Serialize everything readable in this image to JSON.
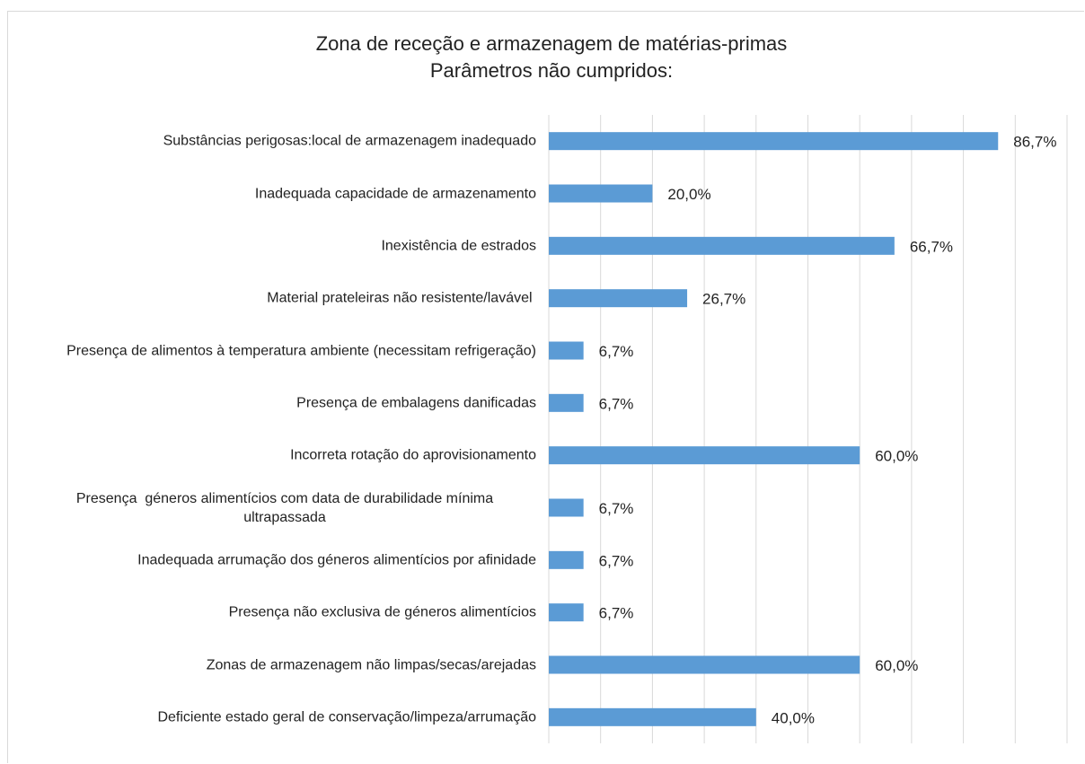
{
  "chart_data": {
    "type": "barh",
    "title": "Zona de receção e armazenagem de matérias-primas",
    "subtitle": "Parâmetros não cumpridos:",
    "categories": [
      "Substâncias perigosas:local de armazenagem inadequado",
      "Inadequada capacidade de armazenamento",
      "Inexistência de estrados",
      "Material prateleiras não resistente/lavável ",
      "Presença de alimentos à temperatura ambiente (necessitam refrigeração)",
      "Presença de embalagens danificadas",
      "Incorreta rotação do aprovisionamento",
      "Presença  géneros alimentícios com data de durabilidade mínima ultrapassada",
      "Inadequada arrumação dos géneros alimentícios por afinidade",
      "Presença não exclusiva de géneros alimentícios",
      "Zonas de armazenagem não limpas/secas/arejadas",
      "Deficiente estado geral de conservação/limpeza/arrumação"
    ],
    "values": [
      86.7,
      20.0,
      66.7,
      26.7,
      6.7,
      6.7,
      60.0,
      6.7,
      6.7,
      6.7,
      60.0,
      40.0
    ],
    "value_labels": [
      "86,7%",
      "20,0%",
      "66,7%",
      "26,7%",
      "6,7%",
      "6,7%",
      "60,0%",
      "6,7%",
      "6,7%",
      "6,7%",
      "60,0%",
      "40,0%"
    ],
    "color": "#5b9bd5",
    "xlim": [
      0,
      100
    ],
    "xticks": [
      0,
      10,
      20,
      30,
      40,
      50,
      60,
      70,
      80,
      90,
      100
    ],
    "grid": true
  }
}
